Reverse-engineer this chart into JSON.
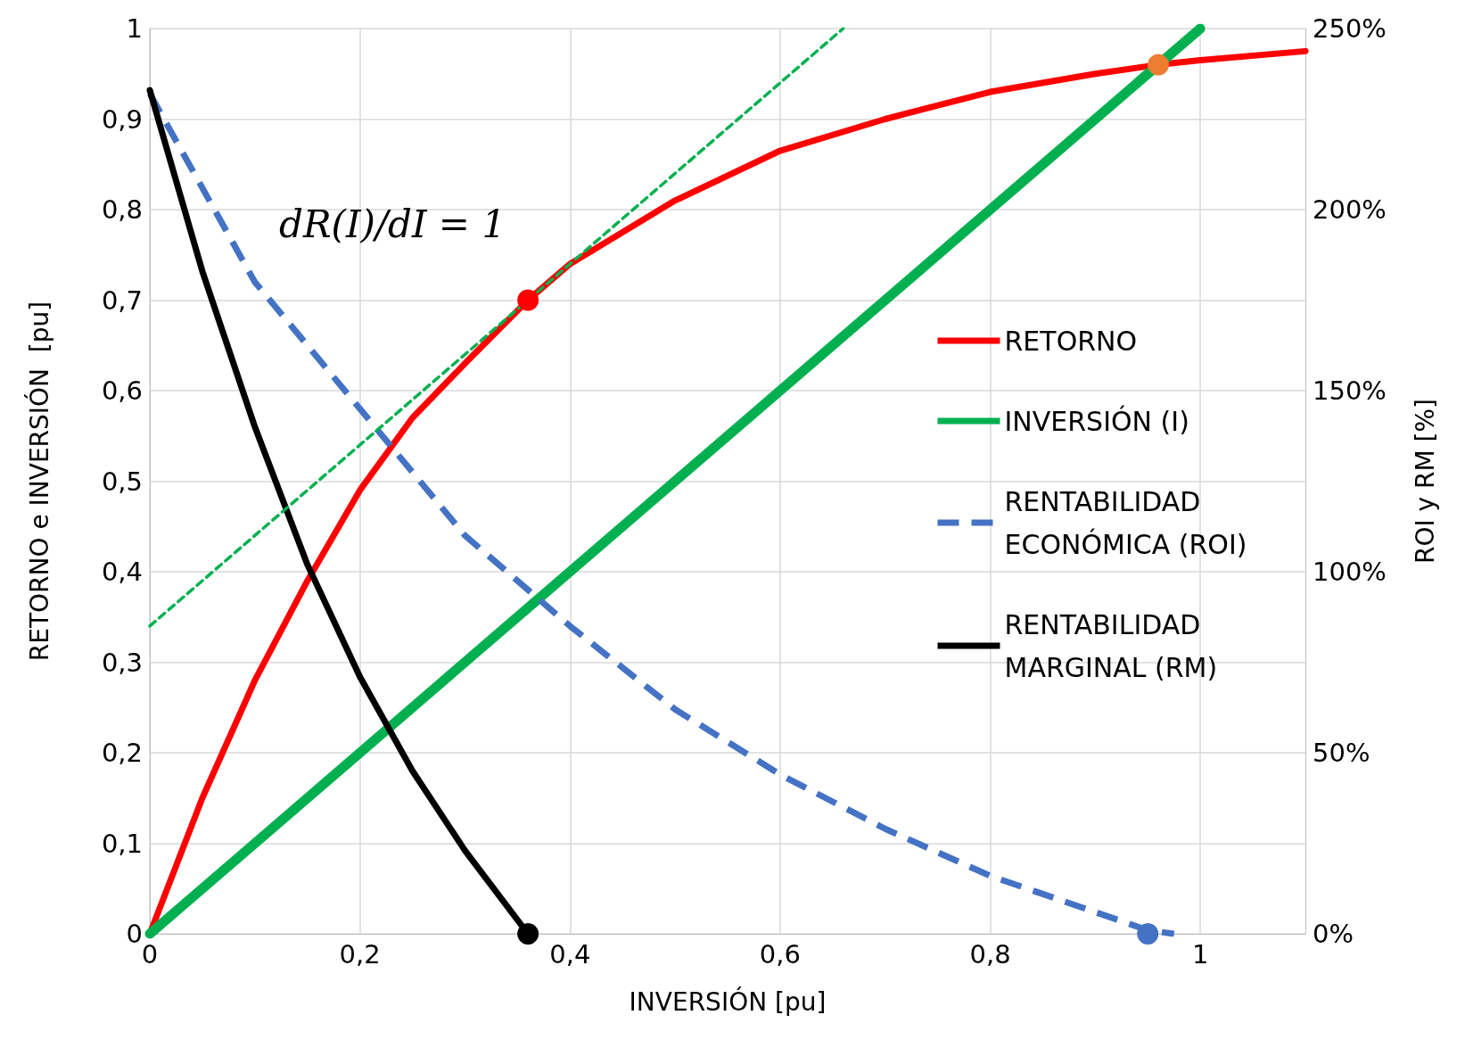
{
  "chart_data": {
    "type": "line",
    "xlabel": "INVERSIÓN [pu]",
    "ylabel": "RETORNO e INVERSIÓN  [pu]",
    "y2label": "ROI y RM [%]",
    "xlim": [
      0,
      1.1
    ],
    "xticks": [
      0,
      {
        "value": 0.2,
        "label": "0,2"
      },
      {
        "value": 0.4,
        "label": "0,4"
      },
      {
        "value": 0.6,
        "label": "0,6"
      },
      {
        "value": 0.8,
        "label": "0,8"
      },
      1
    ],
    "ylim": [
      0,
      1
    ],
    "yticks": [
      0,
      {
        "value": 0.1,
        "label": "0,1"
      },
      {
        "value": 0.2,
        "label": "0,2"
      },
      {
        "value": 0.3,
        "label": "0,3"
      },
      {
        "value": 0.4,
        "label": "0,4"
      },
      {
        "value": 0.5,
        "label": "0,5"
      },
      {
        "value": 0.6,
        "label": "0,6"
      },
      {
        "value": 0.7,
        "label": "0,7"
      },
      {
        "value": 0.8,
        "label": "0,8"
      },
      {
        "value": 0.9,
        "label": "0,9"
      },
      1
    ],
    "y2lim": [
      0,
      250
    ],
    "y2ticks": [
      {
        "value": 0,
        "label": "0%"
      },
      {
        "value": 50,
        "label": "50%"
      },
      {
        "value": 100,
        "label": "100%"
      },
      {
        "value": 150,
        "label": "150%"
      },
      {
        "value": 200,
        "label": "200%"
      },
      {
        "value": 250,
        "label": "250%"
      }
    ],
    "grid": true,
    "legend": "right",
    "series": [
      {
        "name": "RETORNO",
        "color": "#ff0000",
        "line_style": "solid",
        "x": [
          0,
          0.05,
          0.1,
          0.15,
          0.2,
          0.25,
          0.3,
          0.36,
          0.4,
          0.5,
          0.6,
          0.7,
          0.8,
          0.9,
          0.96,
          1.0,
          1.1
        ],
        "values": [
          0,
          0.15,
          0.28,
          0.39,
          0.49,
          0.57,
          0.63,
          0.7,
          0.74,
          0.81,
          0.865,
          0.9,
          0.93,
          0.95,
          0.96,
          0.965,
          0.975
        ]
      },
      {
        "name": "INVERSIÓN (I)",
        "color": "#00b050",
        "line_style": "solid",
        "x": [
          0,
          1.0
        ],
        "values": [
          0,
          1.0
        ]
      },
      {
        "name": "RENTABILIDAD ECONÓMICA (ROI)",
        "color": "#4472c4",
        "line_style": "dashed",
        "axis": "y2",
        "x": [
          0,
          0.1,
          0.2,
          0.3,
          0.4,
          0.5,
          0.6,
          0.7,
          0.8,
          0.9,
          0.95,
          0.975
        ],
        "values": [
          232,
          180,
          145,
          110,
          85,
          62,
          44,
          29,
          16,
          6,
          1,
          0
        ]
      },
      {
        "name": "RENTABILIDAD MARGINAL (RM)",
        "color": "#000000",
        "line_style": "solid",
        "axis": "y2",
        "x": [
          0,
          0.05,
          0.1,
          0.15,
          0.2,
          0.25,
          0.3,
          0.36
        ],
        "values": [
          233,
          183,
          140,
          102,
          71,
          45,
          23,
          0
        ]
      },
      {
        "type": "line",
        "color": "#00b050",
        "line_style": "dotted",
        "x": [
          0,
          0.66
        ],
        "values": [
          0.34,
          1.0
        ]
      },
      {
        "type": "scatter",
        "color": "#ff0000",
        "marker": "circle",
        "x": [
          0.36
        ],
        "values": [
          0.7
        ]
      },
      {
        "type": "scatter",
        "color": "#ed7d31",
        "marker": "circle",
        "x": [
          0.96
        ],
        "values": [
          0.96
        ]
      },
      {
        "type": "scatter",
        "color": "#000000",
        "marker": "circle",
        "axis": "y2",
        "x": [
          0.36
        ],
        "values": [
          0
        ]
      },
      {
        "type": "scatter",
        "color": "#4472c4",
        "marker": "circle",
        "axis": "y2",
        "x": [
          0.95
        ],
        "values": [
          0
        ]
      }
    ],
    "annotations": [
      {
        "text": "dR(I)/dI = 1",
        "x": 0.36,
        "y": 0.7
      }
    ]
  }
}
